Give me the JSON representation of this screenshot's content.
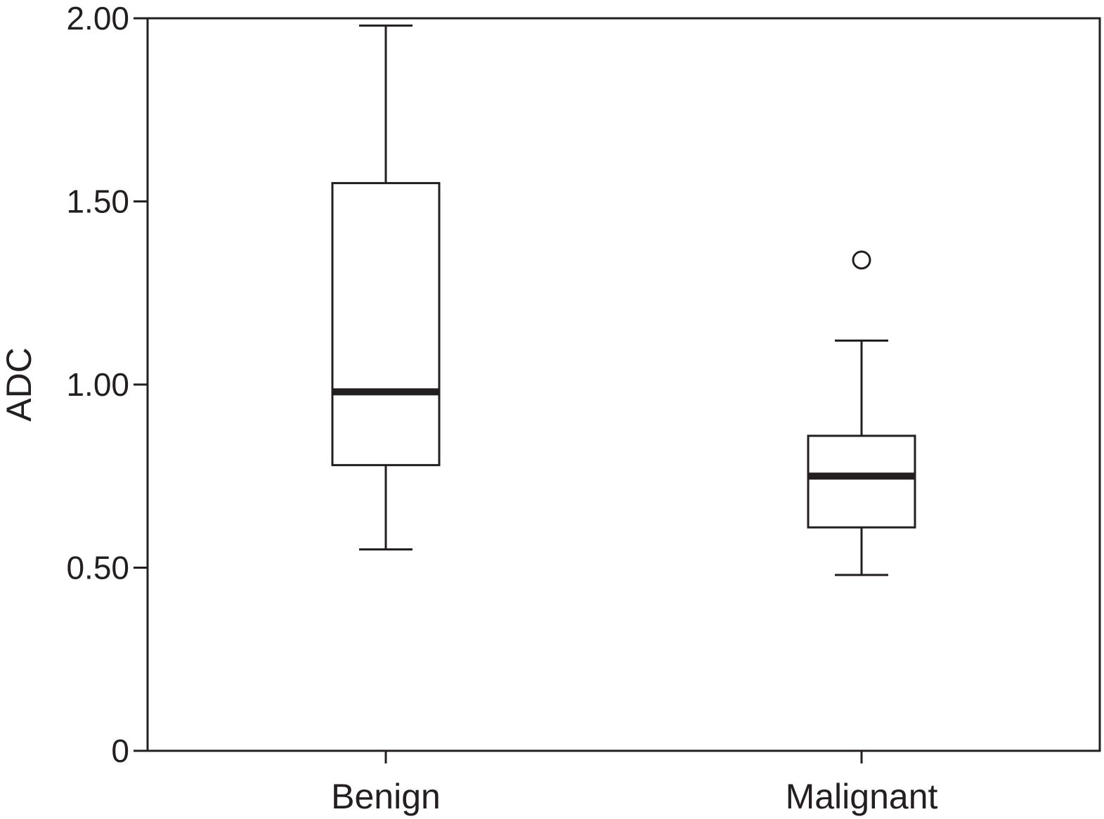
{
  "chart_data": {
    "type": "boxplot",
    "ylabel": "ADC",
    "xlabel": "",
    "ylim": [
      0,
      2.0
    ],
    "yticks": [
      0,
      0.5,
      1.0,
      1.5,
      2.0
    ],
    "ytick_labels": [
      "0",
      "0.50",
      "1.00",
      "1.50",
      "2.00"
    ],
    "categories": [
      "Benign",
      "Malignant"
    ],
    "boxes": [
      {
        "category": "Benign",
        "whisker_low": 0.55,
        "q1": 0.78,
        "median": 0.98,
        "q3": 1.55,
        "whisker_high": 1.98,
        "outliers": []
      },
      {
        "category": "Malignant",
        "whisker_low": 0.48,
        "q1": 0.61,
        "median": 0.75,
        "q3": 0.86,
        "whisker_high": 1.12,
        "outliers": [
          1.34
        ]
      }
    ],
    "grid": false,
    "colors": {
      "ink": "#231f20",
      "box_fill": "#ffffff"
    }
  }
}
